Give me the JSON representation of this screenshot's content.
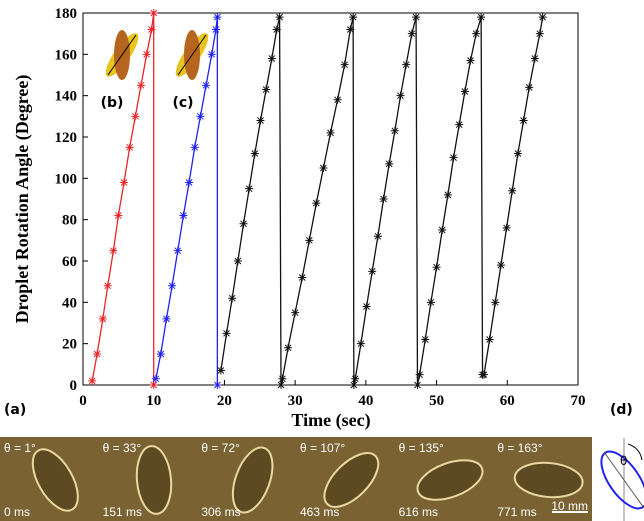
{
  "chart_data": {
    "type": "line",
    "x_label": "Time (sec)",
    "y_label": "Droplet Rotation Angle (Degree)",
    "xlim": [
      0,
      70
    ],
    "xticks": [
      0,
      10,
      20,
      30,
      40,
      50,
      60,
      70
    ],
    "ylim": [
      0,
      180
    ],
    "yticks": [
      0,
      20,
      40,
      60,
      80,
      100,
      120,
      140,
      160,
      180
    ],
    "annotations": [
      "(b)",
      "(c)"
    ],
    "series": [
      {
        "color": "#e8262a",
        "x": [
          1.3,
          2,
          2.8,
          3.5,
          4.3,
          5,
          5.8,
          6.6,
          7.4,
          8.2,
          9,
          9.7,
          10,
          10
        ],
        "values": [
          2,
          15,
          32,
          48,
          65,
          82,
          98,
          115,
          130,
          145,
          160,
          172,
          180,
          0
        ]
      },
      {
        "color": "#2222ee",
        "x": [
          10.3,
          11,
          11.8,
          12.6,
          13.4,
          14.2,
          15,
          15.8,
          16.6,
          17.4,
          18.2,
          18.8,
          19,
          19
        ],
        "values": [
          3,
          15,
          32,
          48,
          65,
          82,
          98,
          115,
          130,
          145,
          160,
          172,
          178,
          0
        ]
      },
      {
        "color": "#111111",
        "x": [
          19.5,
          20.3,
          21.1,
          21.9,
          22.7,
          23.5,
          24.3,
          25.1,
          25.9,
          26.7,
          27.4,
          27.8,
          28,
          28.2,
          29,
          30,
          31,
          32,
          33,
          34,
          35,
          36,
          37,
          37.8,
          38.2,
          38.3,
          38.5,
          39.3,
          40.1,
          40.9,
          41.7,
          42.5,
          43.3,
          44.1,
          44.9,
          45.7,
          46.5,
          47.1,
          47.3,
          47.6,
          48.4,
          49.2,
          50,
          50.8,
          51.6,
          52.4,
          53.2,
          54,
          54.8,
          55.6,
          56.3,
          56.5,
          56.7,
          57.5,
          58.3,
          59.1,
          59.9,
          60.7,
          61.5,
          62.3,
          63.1,
          63.9,
          64.6,
          65
        ],
        "values": [
          7,
          25,
          42,
          60,
          78,
          95,
          112,
          128,
          143,
          158,
          172,
          178,
          0,
          3,
          18,
          35,
          52,
          70,
          88,
          105,
          122,
          138,
          155,
          172,
          178,
          0,
          3,
          20,
          38,
          55,
          72,
          90,
          107,
          123,
          140,
          155,
          170,
          178,
          0,
          5,
          22,
          40,
          57,
          75,
          92,
          110,
          126,
          142,
          157,
          170,
          178,
          5,
          5,
          22,
          40,
          58,
          76,
          94,
          112,
          128,
          144,
          158,
          170,
          178
        ]
      }
    ]
  },
  "panels": {
    "a": "(a)",
    "d": "(d)",
    "d_symbol": "θ"
  },
  "frames": [
    {
      "angle": "θ = 1°",
      "time": "0 ms"
    },
    {
      "angle": "θ = 33°",
      "time": "151 ms"
    },
    {
      "angle": "θ = 72°",
      "time": "306 ms"
    },
    {
      "angle": "θ = 107°",
      "time": "463 ms"
    },
    {
      "angle": "θ = 135°",
      "time": "616 ms"
    },
    {
      "angle": "θ = 163°",
      "time": "771 ms"
    }
  ],
  "scale_bar": "10 mm"
}
